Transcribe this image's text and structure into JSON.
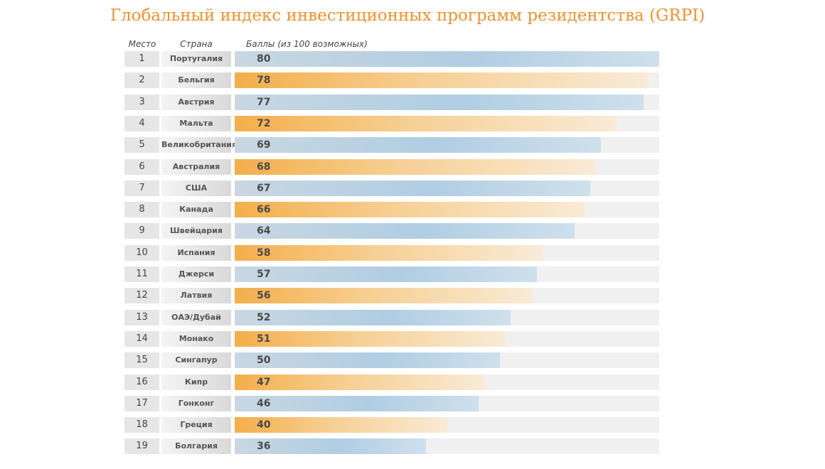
{
  "title": "Глобальный индекс инвестиционных программ резидентства (GRPI)",
  "headers": {
    "rank": "Место",
    "country": "Страна",
    "score": "Баллы (из 100 возможных)"
  },
  "colors": {
    "title": "#f0922b",
    "bar_blue": "#b0cde3",
    "bar_orange": "#f4ae4a",
    "track": "#f0f0f0"
  },
  "chart_data": {
    "type": "bar",
    "orientation": "horizontal",
    "title": "Глобальный индекс инвестиционных программ резидентства (GRPI)",
    "xlabel": "Баллы (из 100 возможных)",
    "ylabel": "Страна",
    "xlim": [
      0,
      80
    ],
    "bar_color_pattern": [
      "blue",
      "orange"
    ],
    "ranks": [
      1,
      2,
      3,
      4,
      5,
      6,
      7,
      8,
      9,
      10,
      11,
      12,
      13,
      14,
      15,
      16,
      17,
      18,
      19
    ],
    "categories": [
      "Португалия",
      "Бельгия",
      "Австрия",
      "Мальта",
      "Великобритания",
      "Австралия",
      "США",
      "Канада",
      "Швейцария",
      "Испания",
      "Джерси",
      "Латвия",
      "ОАЭ/Дубай",
      "Монако",
      "Сингапур",
      "Кипр",
      "Гонконг",
      "Греция",
      "Болгария"
    ],
    "values": [
      80,
      78,
      77,
      72,
      69,
      68,
      67,
      66,
      64,
      58,
      57,
      56,
      52,
      51,
      50,
      47,
      46,
      40,
      36
    ]
  }
}
